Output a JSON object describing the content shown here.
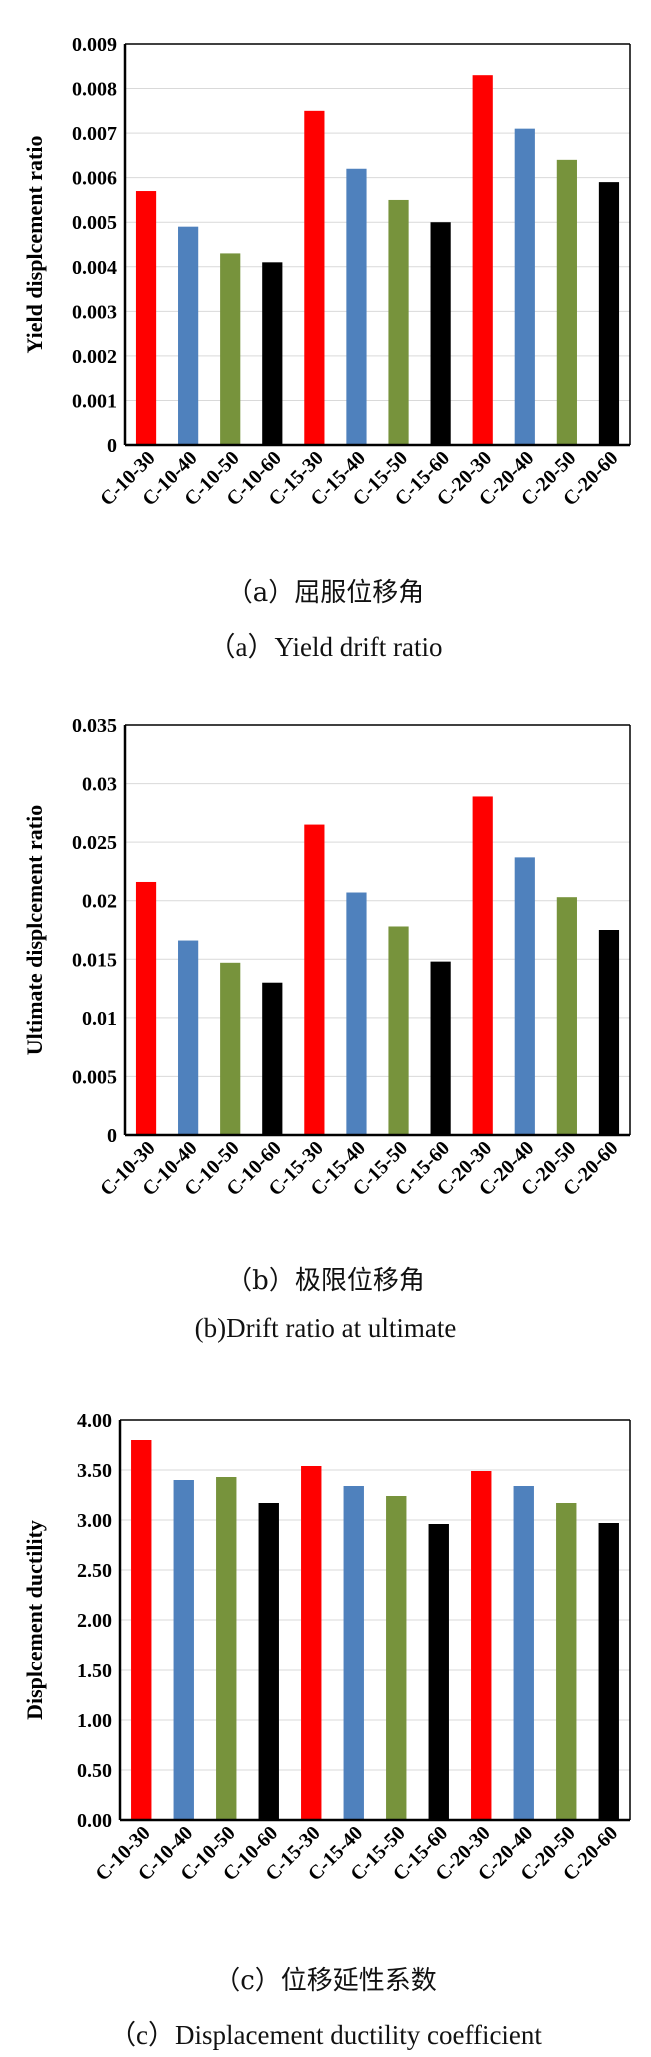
{
  "chart_data": [
    {
      "type": "bar",
      "categories": [
        "C-10-30",
        "C-10-40",
        "C-10-50",
        "C-10-60",
        "C-15-30",
        "C-15-40",
        "C-15-50",
        "C-15-60",
        "C-20-30",
        "C-20-40",
        "C-20-50",
        "C-20-60"
      ],
      "values": [
        0.0057,
        0.0049,
        0.0043,
        0.0041,
        0.0075,
        0.0062,
        0.0055,
        0.005,
        0.0083,
        0.0071,
        0.0064,
        0.0059
      ],
      "ylabel": "Yield displcement ratio",
      "ylim": [
        0,
        0.009
      ],
      "yticks": [
        "0",
        "0.001",
        "0.002",
        "0.003",
        "0.004",
        "0.005",
        "0.006",
        "0.007",
        "0.008",
        "0.009"
      ],
      "bar_colors": [
        "#ff0000",
        "#4f81bd",
        "#77933c",
        "#000000"
      ],
      "caption_cn": "（a）屈服位移角",
      "caption_en": "（a）Yield drift ratio"
    },
    {
      "type": "bar",
      "categories": [
        "C-10-30",
        "C-10-40",
        "C-10-50",
        "C-10-60",
        "C-15-30",
        "C-15-40",
        "C-15-50",
        "C-15-60",
        "C-20-30",
        "C-20-40",
        "C-20-50",
        "C-20-60"
      ],
      "values": [
        0.0216,
        0.0166,
        0.0147,
        0.013,
        0.0265,
        0.0207,
        0.0178,
        0.0148,
        0.0289,
        0.0237,
        0.0203,
        0.0175
      ],
      "ylabel": "Ultimate displcement ratio",
      "ylim": [
        0,
        0.035
      ],
      "yticks": [
        "0",
        "0.005",
        "0.01",
        "0.015",
        "0.02",
        "0.025",
        "0.03",
        "0.035"
      ],
      "bar_colors": [
        "#ff0000",
        "#4f81bd",
        "#77933c",
        "#000000"
      ],
      "caption_cn": "（b）极限位移角",
      "caption_en": "(b)Drift ratio at ultimate"
    },
    {
      "type": "bar",
      "categories": [
        "C-10-30",
        "C-10-40",
        "C-10-50",
        "C-10-60",
        "C-15-30",
        "C-15-40",
        "C-15-50",
        "C-15-60",
        "C-20-30",
        "C-20-40",
        "C-20-50",
        "C-20-60"
      ],
      "values": [
        3.8,
        3.4,
        3.43,
        3.17,
        3.54,
        3.34,
        3.24,
        2.96,
        3.49,
        3.34,
        3.17,
        2.97
      ],
      "ylabel": "Displcement ductility",
      "ylim": [
        0,
        4
      ],
      "yticks": [
        "0.00",
        "0.50",
        "1.00",
        "1.50",
        "2.00",
        "2.50",
        "3.00",
        "3.50",
        "4.00"
      ],
      "bar_colors": [
        "#ff0000",
        "#4f81bd",
        "#77933c",
        "#000000"
      ],
      "caption_cn": "（c）位移延性系数",
      "caption_en": "（c）Displacement ductility coefficient"
    }
  ]
}
